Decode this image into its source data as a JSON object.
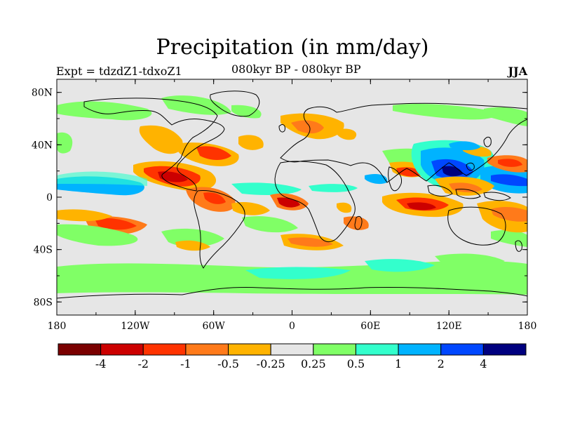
{
  "title": "Precipitation (in mm/day)",
  "subtitle_left": "Expt = tdzdZ1-tdxoZ1",
  "subtitle_center": "080kyr BP - 080kyr BP",
  "subtitle_right": "JJA",
  "lat_ticks": [
    "80N",
    "40N",
    "0",
    "40S",
    "80S"
  ],
  "lon_ticks": [
    "180",
    "120W",
    "60W",
    "0",
    "60E",
    "120E",
    "180"
  ],
  "colorbar": {
    "colors": [
      "#7a0000",
      "#cc0000",
      "#ff3300",
      "#ff7a1a",
      "#ffb300",
      "#e6e6e6",
      "#80ff66",
      "#33ffcc",
      "#00b3ff",
      "#0047ff",
      "#00007f"
    ],
    "labels": [
      "-4",
      "-2",
      "-1",
      "-0.5",
      "-0.25",
      "0.25",
      "0.5",
      "1",
      "2",
      "4"
    ]
  },
  "chart_data": {
    "type": "map",
    "title": "Precipitation (in mm/day)",
    "variable": "Precipitation difference",
    "units": "mm/day",
    "season": "JJA",
    "experiment": "tdzdZ1-tdxoZ1",
    "period": "080kyr BP - 080kyr BP",
    "contour_levels": [
      -4,
      -2,
      -1,
      -0.5,
      -0.25,
      0.25,
      0.5,
      1,
      2,
      4
    ],
    "lat_range": [
      -90,
      90
    ],
    "lon_range": [
      -180,
      180
    ]
  }
}
